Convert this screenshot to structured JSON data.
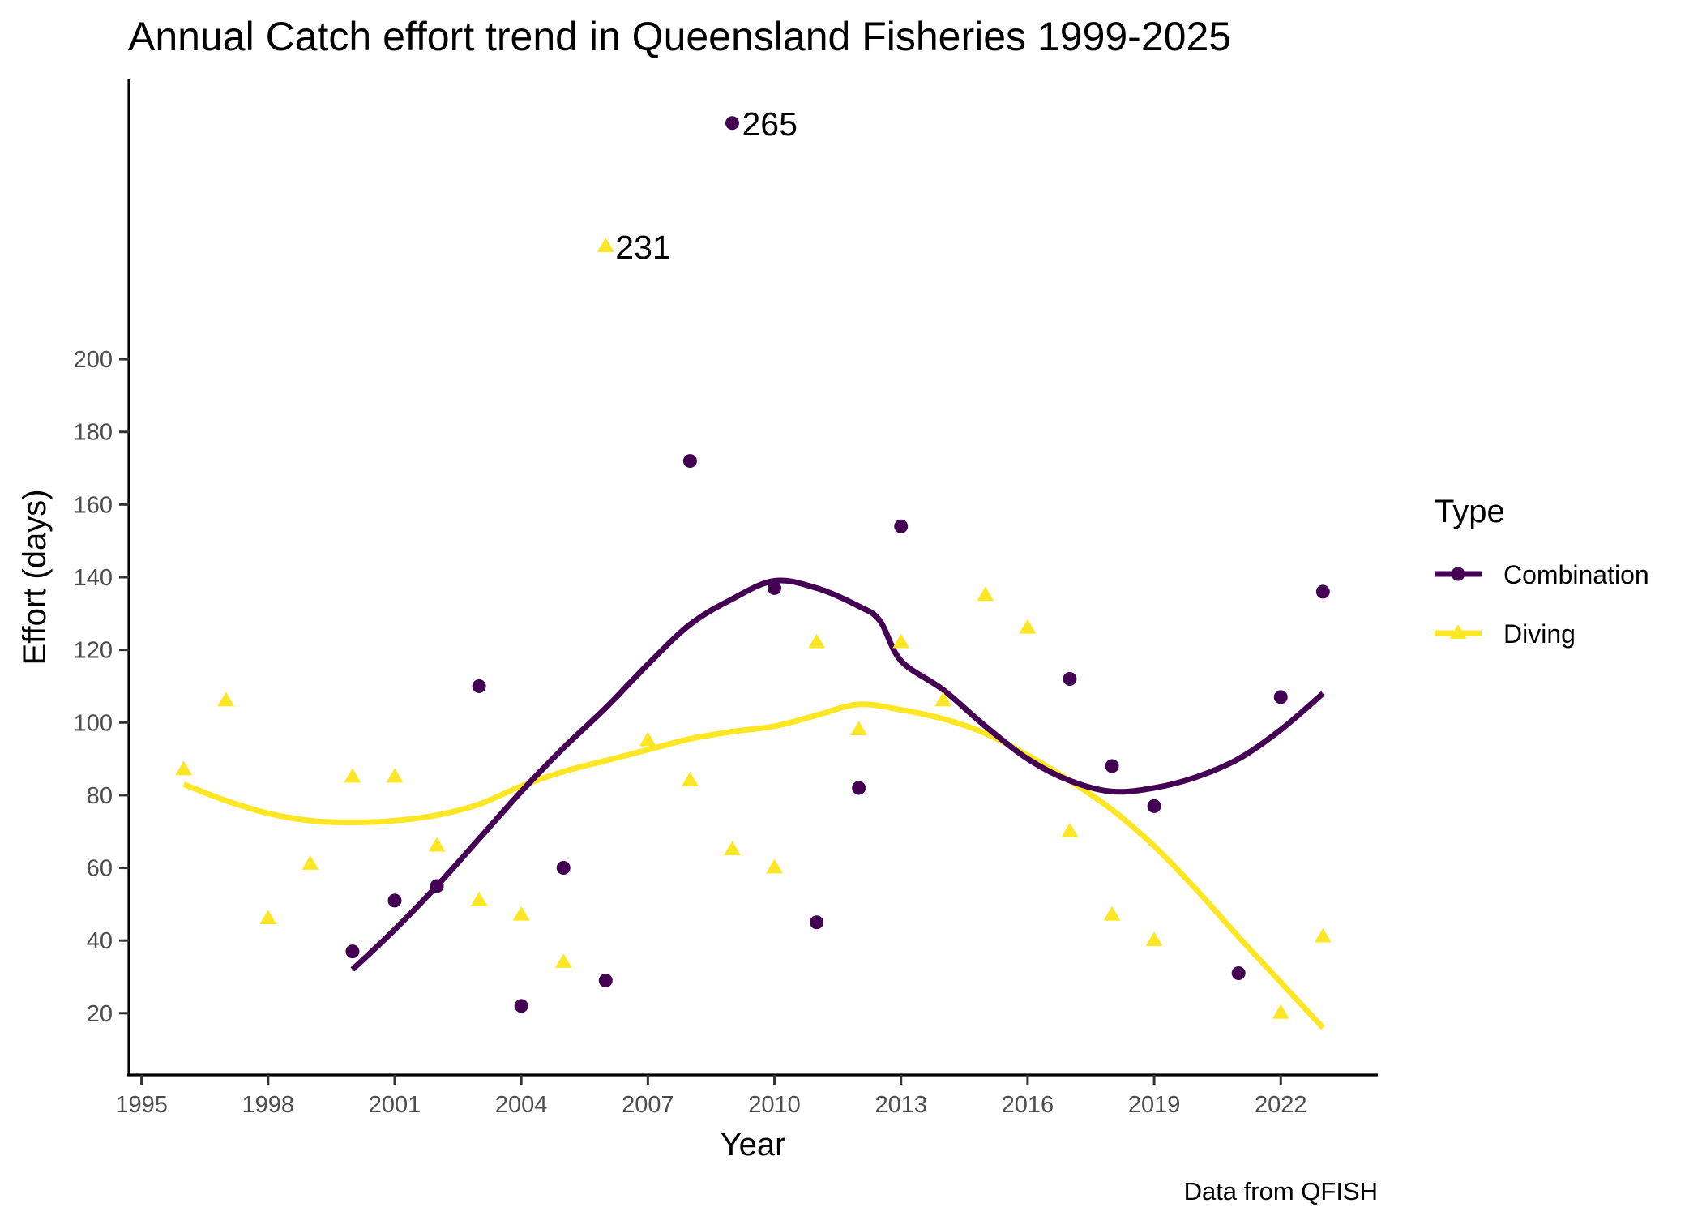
{
  "chart_data": {
    "type": "scatter",
    "title": "Annual Catch effort trend in Queensland Fisheries 1999-2025",
    "xlabel": "Year",
    "ylabel": "Effort (days)",
    "caption": "Data from QFISH",
    "xlim": [
      1994.7,
      2024.3
    ],
    "ylim": [
      3,
      277
    ],
    "x_ticks": [
      1995,
      1998,
      2001,
      2004,
      2007,
      2010,
      2013,
      2016,
      2019,
      2022
    ],
    "y_ticks": [
      20,
      40,
      60,
      80,
      100,
      120,
      140,
      160,
      180,
      200
    ],
    "legend": {
      "title": "Type",
      "position": "right"
    },
    "series": [
      {
        "name": "Combination",
        "color": "#440154",
        "marker": "circle",
        "points": [
          {
            "x": 2000,
            "y": 37
          },
          {
            "x": 2001,
            "y": 51
          },
          {
            "x": 2002,
            "y": 55
          },
          {
            "x": 2003,
            "y": 110
          },
          {
            "x": 2004,
            "y": 22
          },
          {
            "x": 2005,
            "y": 60
          },
          {
            "x": 2006,
            "y": 29
          },
          {
            "x": 2008,
            "y": 172
          },
          {
            "x": 2009,
            "y": 265
          },
          {
            "x": 2010,
            "y": 137
          },
          {
            "x": 2011,
            "y": 45
          },
          {
            "x": 2012,
            "y": 82
          },
          {
            "x": 2013,
            "y": 154
          },
          {
            "x": 2017,
            "y": 112
          },
          {
            "x": 2018,
            "y": 88
          },
          {
            "x": 2019,
            "y": 77
          },
          {
            "x": 2021,
            "y": 31
          },
          {
            "x": 2022,
            "y": 107
          },
          {
            "x": 2023,
            "y": 136
          }
        ],
        "trend": [
          [
            2000,
            32
          ],
          [
            2001,
            43
          ],
          [
            2002,
            55
          ],
          [
            2003,
            68
          ],
          [
            2004,
            81
          ],
          [
            2005,
            93
          ],
          [
            2006,
            104
          ],
          [
            2007,
            116
          ],
          [
            2008,
            127
          ],
          [
            2009,
            134
          ],
          [
            2010,
            139
          ],
          [
            2011,
            137
          ],
          [
            2012,
            132
          ],
          [
            2012.5,
            128
          ],
          [
            2013,
            117
          ],
          [
            2014,
            109
          ],
          [
            2015,
            99
          ],
          [
            2016,
            90
          ],
          [
            2017,
            84
          ],
          [
            2018,
            81
          ],
          [
            2019,
            82
          ],
          [
            2020,
            85
          ],
          [
            2021,
            90
          ],
          [
            2022,
            98
          ],
          [
            2023,
            108
          ]
        ]
      },
      {
        "name": "Diving",
        "color": "#fde725",
        "marker": "triangle",
        "points": [
          {
            "x": 1996,
            "y": 87
          },
          {
            "x": 1997,
            "y": 106
          },
          {
            "x": 1998,
            "y": 46
          },
          {
            "x": 1999,
            "y": 61
          },
          {
            "x": 2000,
            "y": 85
          },
          {
            "x": 2001,
            "y": 85
          },
          {
            "x": 2002,
            "y": 66
          },
          {
            "x": 2003,
            "y": 51
          },
          {
            "x": 2004,
            "y": 47
          },
          {
            "x": 2005,
            "y": 34
          },
          {
            "x": 2006,
            "y": 231
          },
          {
            "x": 2007,
            "y": 95
          },
          {
            "x": 2008,
            "y": 84
          },
          {
            "x": 2009,
            "y": 65
          },
          {
            "x": 2010,
            "y": 60
          },
          {
            "x": 2011,
            "y": 122
          },
          {
            "x": 2012,
            "y": 98
          },
          {
            "x": 2013,
            "y": 122
          },
          {
            "x": 2014,
            "y": 106
          },
          {
            "x": 2015,
            "y": 135
          },
          {
            "x": 2016,
            "y": 126
          },
          {
            "x": 2017,
            "y": 70
          },
          {
            "x": 2018,
            "y": 47
          },
          {
            "x": 2019,
            "y": 40
          },
          {
            "x": 2022,
            "y": 20
          },
          {
            "x": 2023,
            "y": 41
          }
        ],
        "trend": [
          [
            1996,
            83
          ],
          [
            1997,
            78.5
          ],
          [
            1998,
            75
          ],
          [
            1999,
            73
          ],
          [
            2000,
            72.5
          ],
          [
            2001,
            73
          ],
          [
            2002,
            74.5
          ],
          [
            2003,
            77.5
          ],
          [
            2004,
            82.5
          ],
          [
            2005,
            86.5
          ],
          [
            2006,
            89.5
          ],
          [
            2007,
            92.5
          ],
          [
            2008,
            95.5
          ],
          [
            2009,
            97.5
          ],
          [
            2010,
            99
          ],
          [
            2011,
            102
          ],
          [
            2012,
            105
          ],
          [
            2013,
            103.5
          ],
          [
            2014,
            101
          ],
          [
            2015,
            97
          ],
          [
            2016,
            91
          ],
          [
            2017,
            84
          ],
          [
            2018,
            76
          ],
          [
            2019,
            66
          ],
          [
            2020,
            54
          ],
          [
            2021,
            41
          ],
          [
            2022,
            28.5
          ],
          [
            2023,
            16
          ]
        ]
      }
    ],
    "annotations": [
      {
        "x": 2009,
        "y": 265,
        "text": "265"
      },
      {
        "x": 2006,
        "y": 231,
        "text": "231"
      }
    ]
  }
}
